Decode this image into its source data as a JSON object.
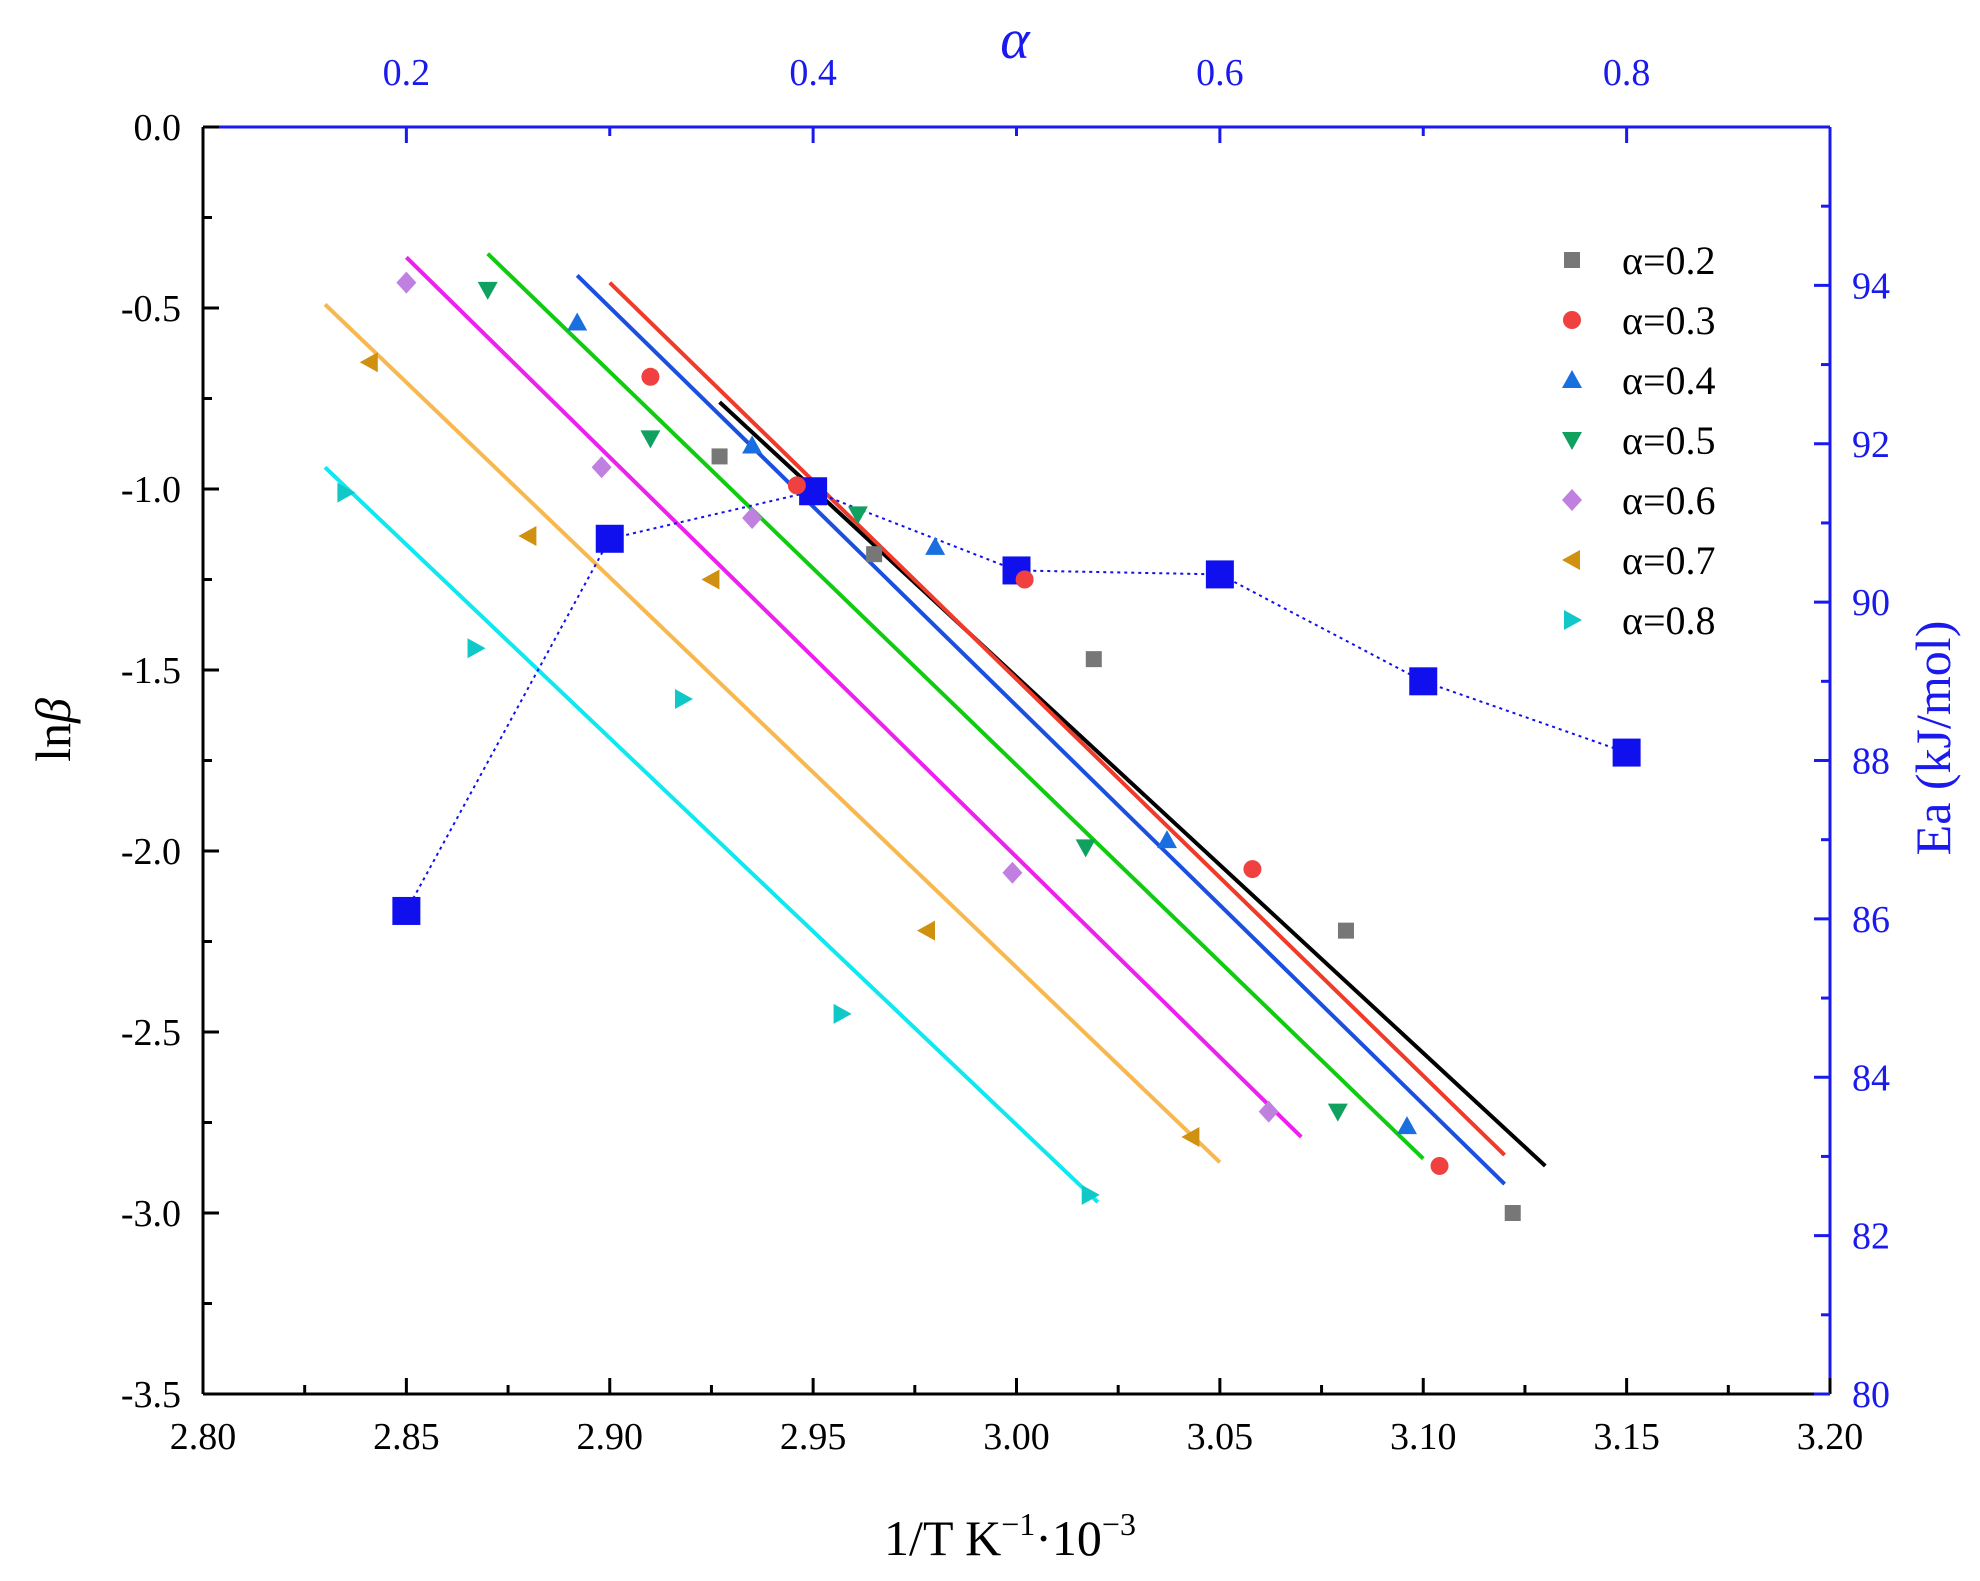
{
  "chart_data": {
    "type": "scatter",
    "x_axis": {
      "label_main": "1/T  K",
      "label_sup1": "−1",
      "label_mid": "·10",
      "label_sup2": "−3",
      "min": 2.8,
      "max": 3.2,
      "ticks": [
        2.8,
        2.85,
        2.9,
        2.95,
        3.0,
        3.05,
        3.1,
        3.15,
        3.2
      ],
      "tick_labels": [
        "2.80",
        "2.85",
        "2.90",
        "2.95",
        "3.00",
        "3.05",
        "3.10",
        "3.15",
        "3.20"
      ]
    },
    "y_axis": {
      "label_main": "ln",
      "label_italic": "β",
      "min": -3.5,
      "max": 0.0,
      "ticks": [
        0.0,
        -0.5,
        -1.0,
        -1.5,
        -2.0,
        -2.5,
        -3.0,
        -3.5
      ],
      "tick_labels": [
        "0.0",
        "-0.5",
        "-1.0",
        "-1.5",
        "-2.0",
        "-2.5",
        "-3.0",
        "-3.5"
      ]
    },
    "top_axis": {
      "label": "α",
      "min": 0.1,
      "max": 0.9,
      "ticks": [
        0.2,
        0.4,
        0.6,
        0.8
      ],
      "tick_labels": [
        "0.2",
        "0.4",
        "0.6",
        "0.8"
      ]
    },
    "right_axis": {
      "label": "Ea (kJ/mol)",
      "min": 80,
      "max": 96,
      "ticks": [
        80,
        82,
        84,
        86,
        88,
        90,
        92,
        94
      ],
      "tick_labels": [
        "80",
        "82",
        "84",
        "86",
        "88",
        "90",
        "92",
        "94"
      ]
    },
    "series": [
      {
        "name": "α=0.2",
        "marker": "square",
        "color": "#777777",
        "line_color": "#000000",
        "points": [
          [
            2.927,
            -0.91
          ],
          [
            2.965,
            -1.18
          ],
          [
            3.019,
            -1.47
          ],
          [
            3.081,
            -2.22
          ],
          [
            3.122,
            -3.0
          ]
        ],
        "fit": [
          [
            2.927,
            -0.76
          ],
          [
            3.13,
            -2.87
          ]
        ]
      },
      {
        "name": "α=0.3",
        "marker": "circle",
        "color": "#f04040",
        "line_color": "#f03a2a",
        "points": [
          [
            2.91,
            -0.69
          ],
          [
            2.946,
            -0.99
          ],
          [
            3.002,
            -1.25
          ],
          [
            3.058,
            -2.05
          ],
          [
            3.104,
            -2.87
          ]
        ],
        "fit": [
          [
            2.9,
            -0.43
          ],
          [
            3.12,
            -2.84
          ]
        ]
      },
      {
        "name": "α=0.4",
        "marker": "triangle-up",
        "color": "#1a6fe0",
        "line_color": "#1a4fe0",
        "points": [
          [
            2.892,
            -0.54
          ],
          [
            2.935,
            -0.88
          ],
          [
            2.98,
            -1.16
          ],
          [
            3.037,
            -1.97
          ],
          [
            3.096,
            -2.76
          ]
        ],
        "fit": [
          [
            2.892,
            -0.41
          ],
          [
            3.12,
            -2.92
          ]
        ]
      },
      {
        "name": "α=0.5",
        "marker": "triangle-down",
        "color": "#10a060",
        "line_color": "#10cc10",
        "points": [
          [
            2.87,
            -0.45
          ],
          [
            2.91,
            -0.86
          ],
          [
            2.961,
            -1.07
          ],
          [
            3.017,
            -1.99
          ],
          [
            3.079,
            -2.72
          ]
        ],
        "fit": [
          [
            2.87,
            -0.35
          ],
          [
            3.1,
            -2.85
          ]
        ]
      },
      {
        "name": "α=0.6",
        "marker": "diamond",
        "color": "#c080e0",
        "line_color": "#ee20ee",
        "points": [
          [
            2.85,
            -0.43
          ],
          [
            2.898,
            -0.94
          ],
          [
            2.935,
            -1.08
          ],
          [
            2.999,
            -2.06
          ],
          [
            3.062,
            -2.72
          ]
        ],
        "fit": [
          [
            2.85,
            -0.36
          ],
          [
            3.07,
            -2.79
          ]
        ]
      },
      {
        "name": "α=0.7",
        "marker": "triangle-left",
        "color": "#d09010",
        "line_color": "#f8b850",
        "points": [
          [
            2.841,
            -0.65
          ],
          [
            2.88,
            -1.13
          ],
          [
            2.925,
            -1.25
          ],
          [
            2.978,
            -2.22
          ],
          [
            3.043,
            -2.79
          ]
        ],
        "fit": [
          [
            2.83,
            -0.49
          ],
          [
            3.05,
            -2.86
          ]
        ]
      },
      {
        "name": "α=0.8",
        "marker": "triangle-right",
        "color": "#10c8c8",
        "line_color": "#10e8f0",
        "points": [
          [
            2.835,
            -1.01
          ],
          [
            2.867,
            -1.44
          ],
          [
            2.918,
            -1.58
          ],
          [
            2.957,
            -2.45
          ],
          [
            3.018,
            -2.95
          ]
        ],
        "fit": [
          [
            2.83,
            -0.94
          ],
          [
            3.02,
            -2.97
          ]
        ]
      }
    ],
    "ea_series": {
      "name": "Ea",
      "color": "#1010ee",
      "alpha": [
        0.2,
        0.3,
        0.4,
        0.5,
        0.6,
        0.7,
        0.8
      ],
      "ea": [
        86.1,
        90.8,
        91.4,
        90.4,
        90.35,
        89.0,
        88.1
      ]
    },
    "legend": {
      "position": "top-right",
      "items": [
        "α=0.2",
        "α=0.3",
        "α=0.4",
        "α=0.5",
        "α=0.6",
        "α=0.7",
        "α=0.8"
      ]
    }
  }
}
